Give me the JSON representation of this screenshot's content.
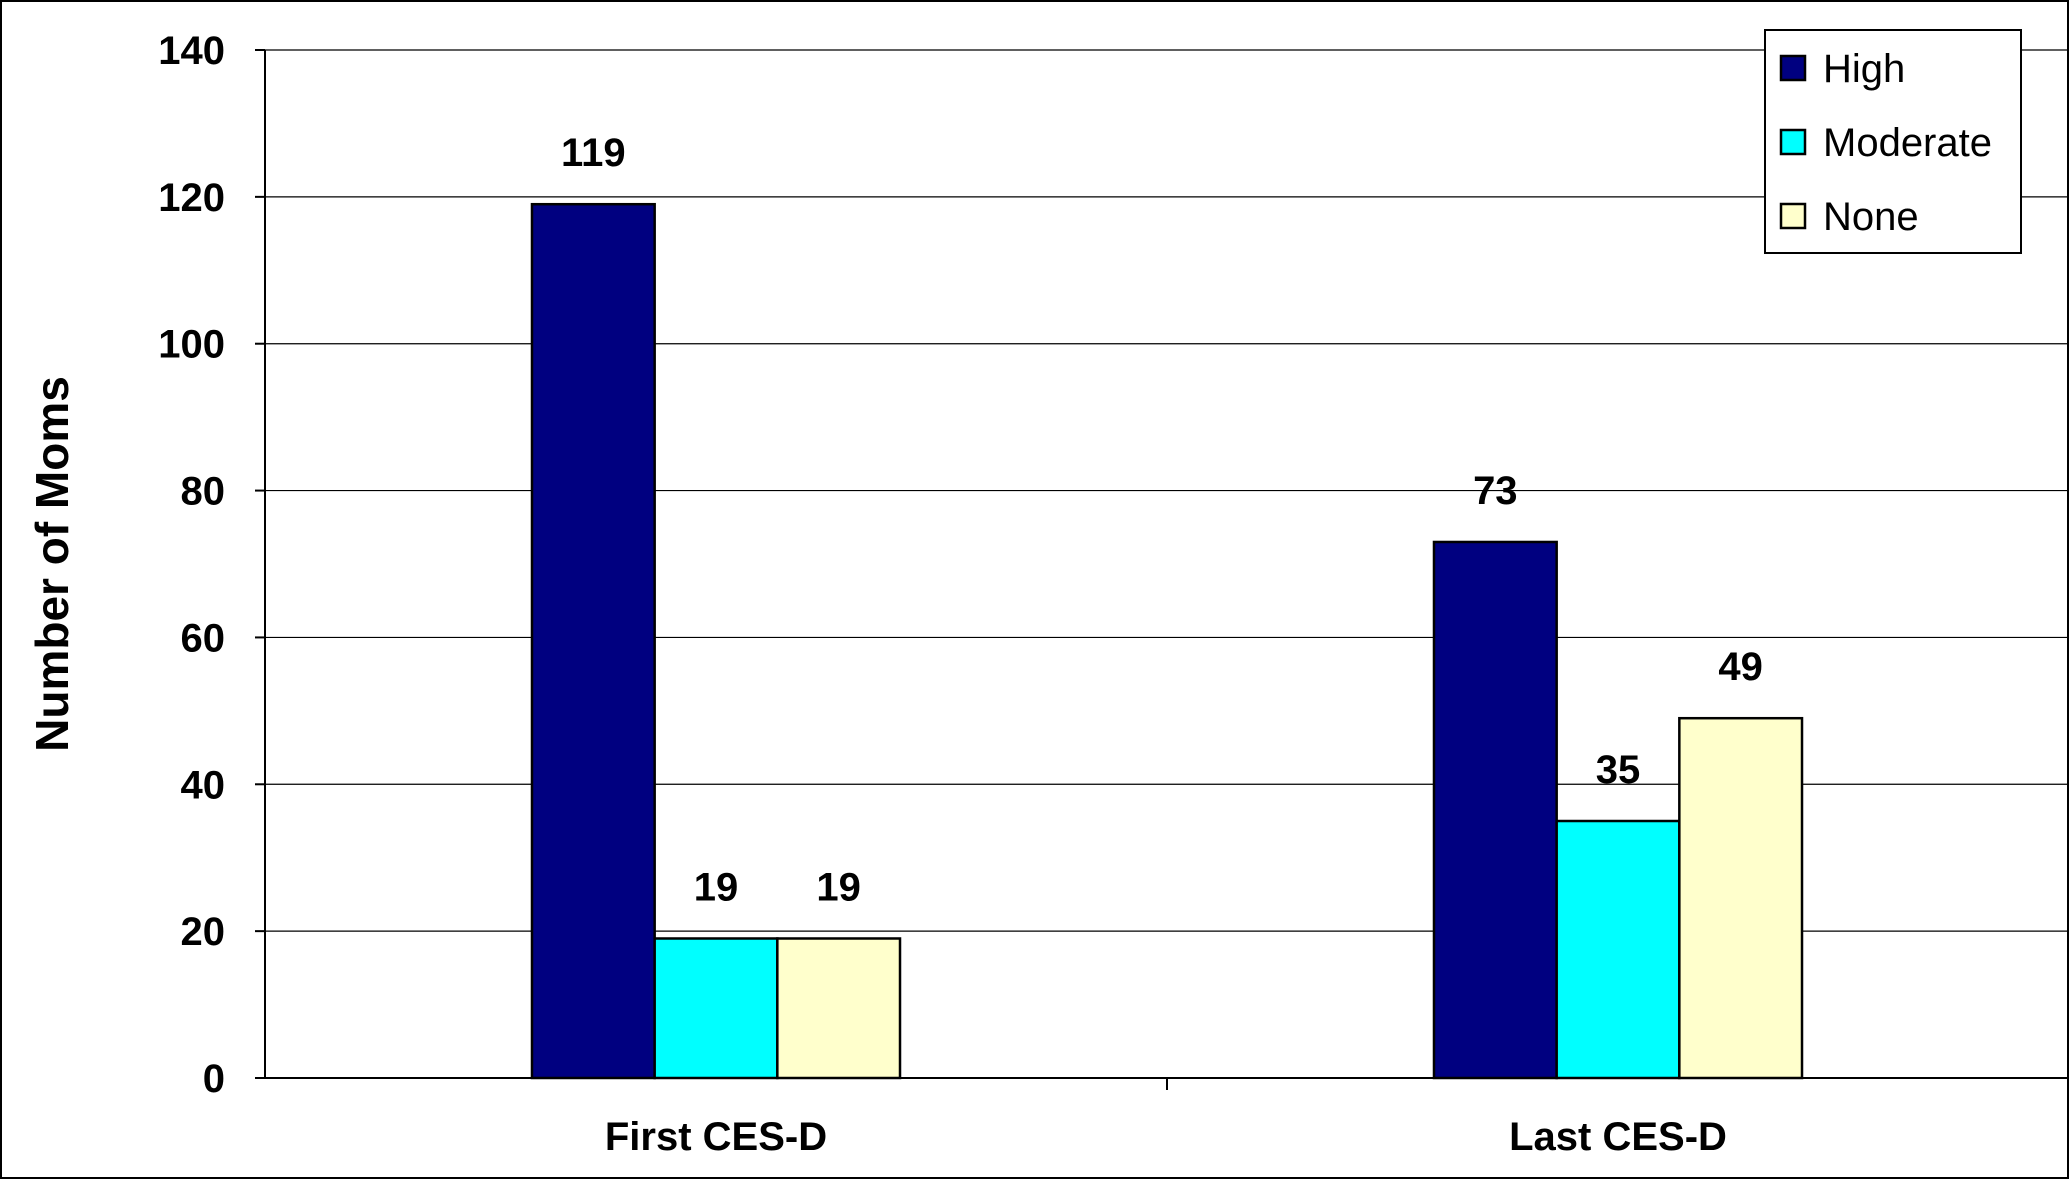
{
  "chart_data": {
    "type": "bar",
    "categories": [
      "First CES-D",
      "Last CES-D"
    ],
    "series": [
      {
        "name": "High",
        "values": [
          119,
          73
        ],
        "color": "#000080"
      },
      {
        "name": "Moderate",
        "values": [
          19,
          35
        ],
        "color": "#00FFFF"
      },
      {
        "name": "None",
        "values": [
          19,
          49
        ],
        "color": "#FFFFCC"
      }
    ],
    "ylabel": "Number of Moms",
    "xlabel": "",
    "ylim": [
      0,
      140
    ],
    "yticks": [
      0,
      20,
      40,
      60,
      80,
      100,
      120,
      140
    ],
    "grid": true,
    "legend": "top-right",
    "data_labels": true
  }
}
